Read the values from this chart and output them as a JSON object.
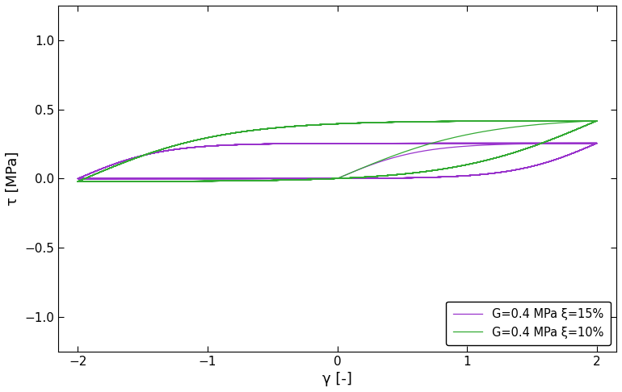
{
  "title": "",
  "xlabel": "γ [-]",
  "ylabel": "τ [MPa]",
  "xlim": [
    -2.15,
    2.15
  ],
  "ylim": [
    -1.25,
    1.25
  ],
  "xticks": [
    -2,
    -1,
    0,
    1,
    2
  ],
  "yticks": [
    -1,
    -0.5,
    0,
    0.5,
    1
  ],
  "legend": [
    {
      "label": "G=0.4 MPa ξ=15%",
      "color": "#9933CC"
    },
    {
      "label": "G=0.4 MPa ξ=10%",
      "color": "#33AA33"
    }
  ],
  "G": 0.4,
  "gamma_max": 2.0,
  "n_cycles": 12,
  "background_color": "#ffffff",
  "linewidth": 0.9,
  "figsize": [
    7.7,
    4.86
  ],
  "dpi": 100
}
